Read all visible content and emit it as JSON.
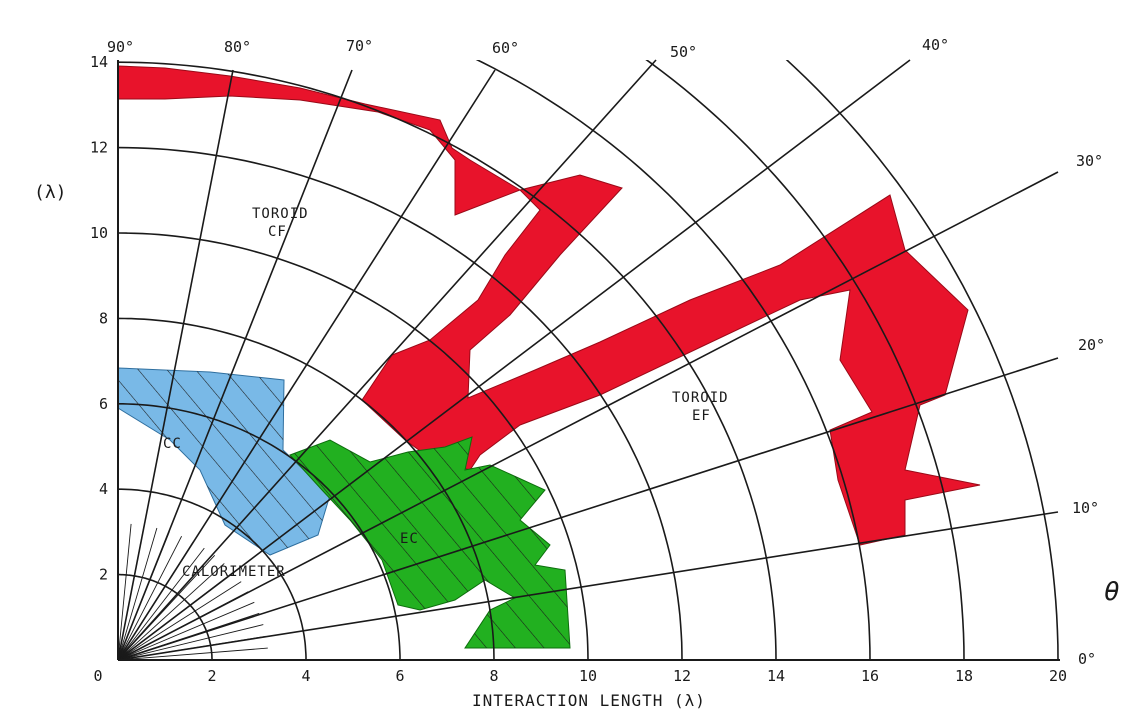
{
  "diagram": {
    "x_axis_label": "INTERACTION LENGTH  (λ)",
    "y_axis_label": "(λ)",
    "theta_label": "θ",
    "x_ticks": [
      "0",
      "2",
      "4",
      "6",
      "8",
      "10",
      "12",
      "14",
      "16",
      "18",
      "20"
    ],
    "y_ticks": [
      "2",
      "4",
      "6",
      "8",
      "10",
      "12",
      "14"
    ],
    "angle_labels": [
      "0°",
      "10°",
      "20°",
      "30°",
      "40°",
      "50°",
      "60°",
      "70°",
      "80°",
      "90°"
    ],
    "regions": {
      "toroid_cf": [
        "TOROID",
        "CF"
      ],
      "toroid_ef": [
        "TOROID",
        "EF"
      ],
      "cc": "CC",
      "ec": "EC",
      "calorimeter": "CALORIMETER"
    },
    "colors": {
      "toroid": "#e8132b",
      "cc": "#79b9e7",
      "ec": "#22b020",
      "lines": "#1a1a1a"
    }
  }
}
